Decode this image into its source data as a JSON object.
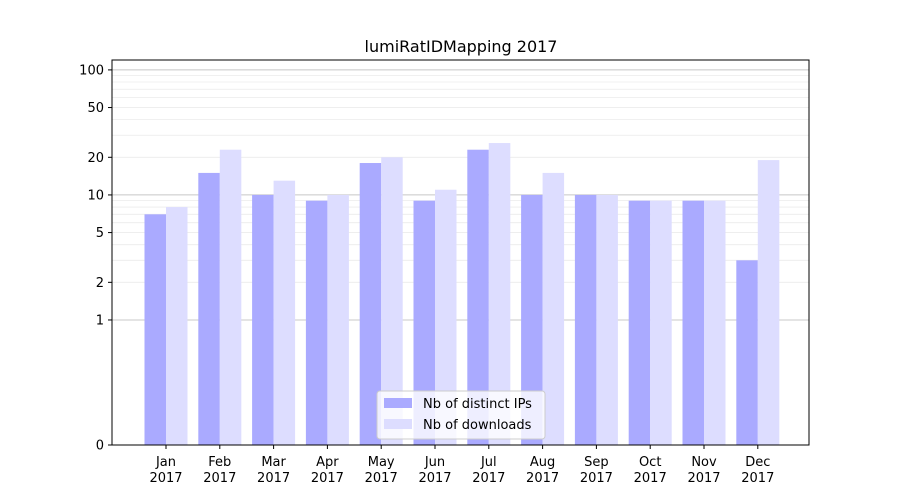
{
  "chart_data": {
    "type": "bar",
    "title": "lumiRatIDMapping 2017",
    "xlabel": "",
    "ylabel": "",
    "yscale": "symlog",
    "ylim": [
      0,
      120
    ],
    "yticks": [
      "0",
      "1",
      "2",
      "5",
      "10",
      "20",
      "50",
      "100"
    ],
    "categories": [
      [
        "Jan",
        "2017"
      ],
      [
        "Feb",
        "2017"
      ],
      [
        "Mar",
        "2017"
      ],
      [
        "Apr",
        "2017"
      ],
      [
        "May",
        "2017"
      ],
      [
        "Jun",
        "2017"
      ],
      [
        "Jul",
        "2017"
      ],
      [
        "Aug",
        "2017"
      ],
      [
        "Sep",
        "2017"
      ],
      [
        "Oct",
        "2017"
      ],
      [
        "Nov",
        "2017"
      ],
      [
        "Dec",
        "2017"
      ]
    ],
    "series": [
      {
        "name": "Nb of distinct IPs",
        "color": "#aaaaff",
        "values": [
          7,
          15,
          10,
          9,
          18,
          9,
          23,
          10,
          10,
          9,
          9,
          3
        ]
      },
      {
        "name": "Nb of downloads",
        "color": "#ddddff",
        "values": [
          8,
          23,
          13,
          10,
          20,
          11,
          26,
          15,
          10,
          9,
          9,
          19
        ]
      }
    ],
    "grid": true,
    "legend_position": "bottom-center"
  }
}
